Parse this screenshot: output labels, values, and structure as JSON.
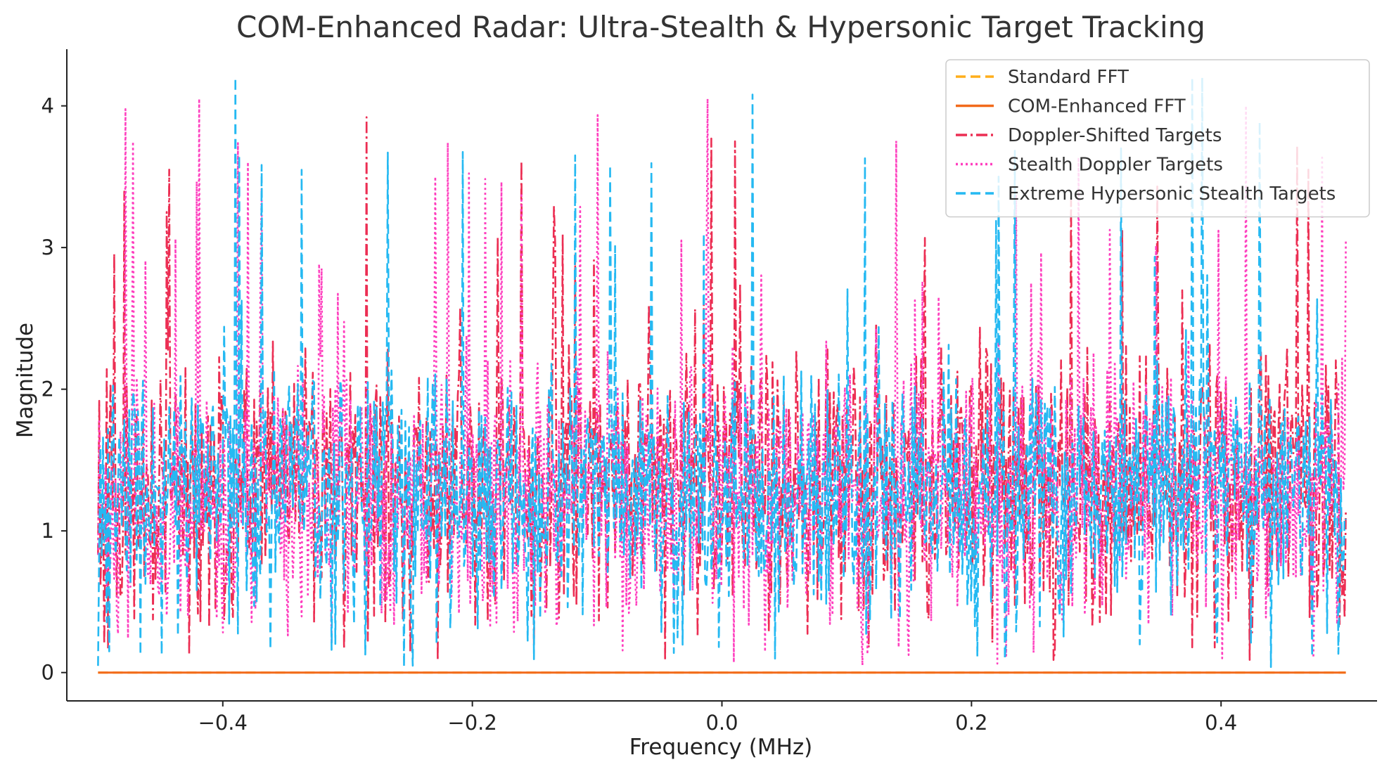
{
  "chart_data": {
    "type": "line",
    "title": "COM-Enhanced Radar: Ultra-Stealth & Hypersonic Target Tracking",
    "xlabel": "Frequency (MHz)",
    "ylabel": "Magnitude",
    "xlim": [
      -0.525,
      0.525
    ],
    "ylim": [
      -0.2,
      4.4
    ],
    "x_ticks": [
      -0.4,
      -0.2,
      0.0,
      0.2,
      0.4
    ],
    "x_tick_labels": [
      "−0.4",
      "−0.2",
      "0.0",
      "0.2",
      "0.4"
    ],
    "y_ticks": [
      0,
      1,
      2,
      3,
      4
    ],
    "y_tick_labels": [
      "0",
      "1",
      "2",
      "3",
      "4"
    ],
    "grid": false,
    "legend_position": "top-right",
    "x_range": [
      -0.5,
      0.5
    ],
    "series": [
      {
        "name": "Standard FFT",
        "color": "#ffae1a",
        "style": "dashed",
        "points": 2,
        "x": [
          -0.5,
          0.5
        ],
        "values": [
          0,
          0
        ]
      },
      {
        "name": "COM-Enhanced FFT",
        "color": "#f26a1b",
        "style": "solid",
        "points": 2,
        "x": [
          -0.5,
          0.5
        ],
        "values": [
          0,
          0
        ]
      },
      {
        "name": "Doppler-Shifted Targets",
        "color": "#ec2e53",
        "style": "dashdot",
        "points": 1000,
        "mean": 1.35,
        "spread": 0.62,
        "min": 0.08,
        "max": 3.92,
        "peaks": [
          [
            -0.443,
            3.55
          ],
          [
            -0.285,
            3.92
          ],
          [
            -0.009,
            3.77
          ],
          [
            0.011,
            3.75
          ],
          [
            0.28,
            3.35
          ],
          [
            0.47,
            3.55
          ]
        ],
        "seed": 11
      },
      {
        "name": "Stealth Doppler Targets",
        "color": "#ff3fbf",
        "style": "dotted",
        "points": 1000,
        "mean": 1.25,
        "spread": 0.6,
        "min": 0.05,
        "max": 4.05,
        "peaks": [
          [
            -0.419,
            4.05
          ],
          [
            -0.23,
            3.5
          ],
          [
            -0.033,
            3.05
          ],
          [
            0.42,
            4.0
          ],
          [
            0.5,
            3.05
          ]
        ],
        "seed": 23
      },
      {
        "name": "Extreme Hypersonic Stealth Targets",
        "color": "#25b9f2",
        "style": "dashed",
        "points": 1000,
        "mean": 1.3,
        "spread": 0.55,
        "min": 0.03,
        "max": 4.2,
        "peaks": [
          [
            -0.39,
            4.2
          ],
          [
            -0.268,
            3.67
          ],
          [
            -0.118,
            3.65
          ],
          [
            0.115,
            3.63
          ],
          [
            0.385,
            4.2
          ]
        ],
        "seed": 37
      }
    ]
  }
}
